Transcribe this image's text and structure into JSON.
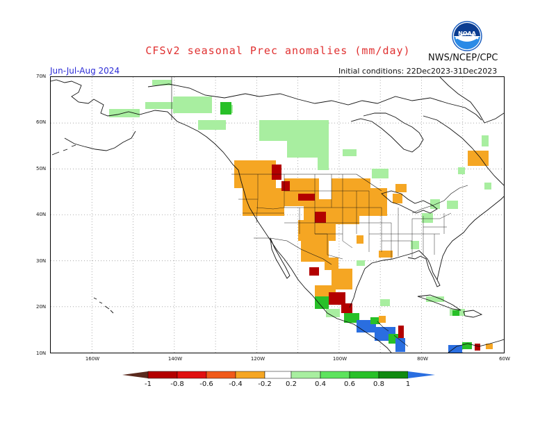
{
  "header": {
    "title": "CFSv2 seasonal Prec anomalies (mm/day)",
    "agency": "NWS/NCEP/CPC",
    "logo_text": "NOAA",
    "period": "Jun-Jul-Aug 2024",
    "initial_conditions": "Initial conditions: 22Dec2023-31Dec2023"
  },
  "axes": {
    "lat_labels": [
      "70N",
      "60N",
      "50N",
      "40N",
      "30N",
      "20N",
      "10N"
    ],
    "lon_labels": [
      "160W",
      "140W",
      "120W",
      "100W",
      "80W",
      "60W"
    ]
  },
  "legend": {
    "tick_labels": [
      "-1",
      "-0.8",
      "-0.6",
      "-0.4",
      "-0.2",
      "0.2",
      "0.4",
      "0.6",
      "0.8",
      "1"
    ],
    "colors": [
      "#5a2a1e",
      "#b30000",
      "#e01010",
      "#f05a1a",
      "#f5a623",
      "#ffffff",
      "#a8eea0",
      "#5ee35e",
      "#28c028",
      "#108a10",
      "#2a6ee0"
    ]
  },
  "colors": {
    "dry_strong": "#b30000",
    "dry": "#f5a623",
    "wet": "#a8eea0",
    "wet_strong": "#28c028",
    "wettest": "#2a6ee0"
  }
}
